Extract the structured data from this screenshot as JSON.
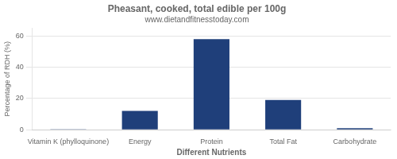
{
  "chart_data": {
    "type": "bar",
    "title": "Pheasant, cooked, total edible per 100g",
    "subtitle": "www.dietandfitnesstoday.com",
    "xlabel": "Different Nutrients",
    "ylabel": "Percentage of RDH (%)",
    "categories": [
      "Vitamin K (phylloquinone)",
      "Energy",
      "Protein",
      "Total Fat",
      "Carbohydrate"
    ],
    "values": [
      0.3,
      12,
      58,
      19,
      1
    ],
    "color": "#1F3F7A",
    "ylim": [
      0,
      65
    ],
    "yticks": [
      0,
      20,
      40,
      60
    ],
    "grid": true
  }
}
